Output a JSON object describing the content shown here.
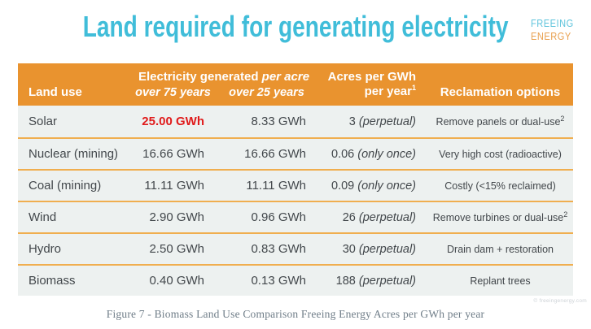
{
  "page": {
    "title": "Land required for generating electricity",
    "logo": {
      "line1": "FREEING",
      "line2": "ENERGY"
    },
    "fine_print": "© freeingenergy.com",
    "caption": "Figure 7 - Biomass Land Use Comparison Freeing Energy Acres per GWh per year"
  },
  "table": {
    "header": {
      "land_use": "Land use",
      "group_title": "Electricity generated",
      "group_title_italic": "per acre",
      "sub_75": "over 75 years",
      "sub_25": "over 25 years",
      "acres_line1": "Acres per GWh",
      "acres_line2": "per year",
      "acres_sup": "1",
      "reclamation": "Reclamation options"
    },
    "rows": [
      {
        "land_use": "Solar",
        "gwh_75": "25.00 GWh",
        "highlight": true,
        "gwh_25": "8.33 GWh",
        "acres": "3",
        "acres_note": "(perpetual)",
        "reclamation": "Remove panels or dual-use",
        "reclamation_sup": "2"
      },
      {
        "land_use": "Nuclear (mining)",
        "gwh_75": "16.66 GWh",
        "highlight": false,
        "gwh_25": "16.66 GWh",
        "acres": "0.06",
        "acres_note": "(only once)",
        "reclamation": "Very high cost (radioactive)",
        "reclamation_sup": ""
      },
      {
        "land_use": "Coal (mining)",
        "gwh_75": "11.11 GWh",
        "highlight": false,
        "gwh_25": "11.11 GWh",
        "acres": "0.09",
        "acres_note": "(only once)",
        "reclamation": "Costly (<15% reclaimed)",
        "reclamation_sup": ""
      },
      {
        "land_use": "Wind",
        "gwh_75": "2.90 GWh",
        "highlight": false,
        "gwh_25": "0.96 GWh",
        "acres": "26",
        "acres_note": "(perpetual)",
        "reclamation": "Remove turbines or dual-use",
        "reclamation_sup": "2"
      },
      {
        "land_use": "Hydro",
        "gwh_75": "2.50 GWh",
        "highlight": false,
        "gwh_25": "0.83 GWh",
        "acres": "30",
        "acres_note": "(perpetual)",
        "reclamation": "Drain dam + restoration",
        "reclamation_sup": ""
      },
      {
        "land_use": "Biomass",
        "gwh_75": "0.40 GWh",
        "highlight": false,
        "gwh_25": "0.13 GWh",
        "acres": "188",
        "acres_note": "(perpetual)",
        "reclamation": "Replant trees",
        "reclamation_sup": ""
      }
    ]
  },
  "colors": {
    "title_cyan": "#40BDD9",
    "header_orange": "#E9932F",
    "separator_orange": "#F0AE4F",
    "row_background": "#EDF1F0",
    "highlight_red": "#E01B1B",
    "logo_cyan": "#5FC4DC",
    "logo_orange": "#E9A150",
    "caption_gray": "#6F7D88"
  },
  "chart_data": {
    "type": "table",
    "title": "Land required for generating electricity",
    "columns": [
      "Land use",
      "Electricity generated per acre over 75 years",
      "Electricity generated per acre over 25 years",
      "Acres per GWh per year",
      "Reclamation options"
    ],
    "rows": [
      [
        "Solar",
        "25.00 GWh",
        "8.33 GWh",
        "3 (perpetual)",
        "Remove panels or dual-use"
      ],
      [
        "Nuclear (mining)",
        "16.66 GWh",
        "16.66 GWh",
        "0.06 (only once)",
        "Very high cost (radioactive)"
      ],
      [
        "Coal (mining)",
        "11.11 GWh",
        "11.11 GWh",
        "0.09 (only once)",
        "Costly (<15% reclaimed)"
      ],
      [
        "Wind",
        "2.90 GWh",
        "0.96 GWh",
        "26 (perpetual)",
        "Remove turbines or dual-use"
      ],
      [
        "Hydro",
        "2.50 GWh",
        "0.83 GWh",
        "30 (perpetual)",
        "Drain dam + restoration"
      ],
      [
        "Biomass",
        "0.40 GWh",
        "0.13 GWh",
        "188 (perpetual)",
        "Replant trees"
      ]
    ]
  }
}
